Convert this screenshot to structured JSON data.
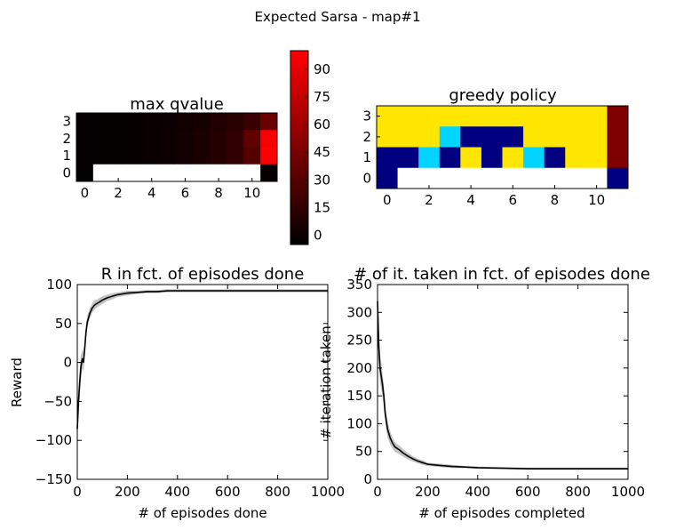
{
  "figure": {
    "suptitle": "Expected Sarsa - map#1"
  },
  "chart_data": [
    {
      "id": "qvalue",
      "type": "heatmap",
      "title": "max qvalue",
      "grid_rows": 4,
      "grid_cols": 12,
      "xticks": [
        0,
        2,
        4,
        6,
        8,
        10
      ],
      "yticks": [
        3,
        2,
        1,
        0
      ],
      "cmap": [
        "#000000",
        "#ff0000"
      ],
      "vmin": -5,
      "vmax": 100,
      "values": [
        [
          -4,
          -3,
          -3,
          -2,
          -1,
          0,
          2,
          4,
          8,
          12,
          18,
          38
        ],
        [
          -4,
          -3,
          -3,
          -2,
          -1,
          1,
          3,
          6,
          10,
          16,
          35,
          97
        ],
        [
          -4,
          -3,
          -3,
          -2,
          -1,
          1,
          3,
          6,
          10,
          16,
          30,
          99
        ],
        [
          -4,
          null,
          null,
          null,
          null,
          null,
          null,
          null,
          null,
          null,
          null,
          -3
        ]
      ],
      "colorbar": {
        "ticks": [
          0,
          15,
          30,
          45,
          60,
          75,
          90
        ]
      }
    },
    {
      "id": "policy",
      "type": "heatmap",
      "title": "greedy policy",
      "grid_rows": 4,
      "grid_cols": 12,
      "xticks": [
        0,
        2,
        4,
        6,
        8,
        10
      ],
      "yticks": [
        3,
        2,
        1,
        0
      ],
      "palette": {
        "0": "#000080",
        "1": "#00d4ff",
        "2": "#ffe600",
        "3": "#7f0000",
        "empty": "#ffffff"
      },
      "values": [
        [
          2,
          2,
          2,
          2,
          2,
          2,
          2,
          2,
          2,
          2,
          2,
          3
        ],
        [
          2,
          2,
          2,
          1,
          0,
          0,
          0,
          2,
          2,
          2,
          2,
          3
        ],
        [
          0,
          0,
          1,
          0,
          2,
          0,
          2,
          1,
          0,
          2,
          2,
          3
        ],
        [
          0,
          null,
          null,
          null,
          null,
          null,
          null,
          null,
          null,
          null,
          null,
          0
        ]
      ]
    },
    {
      "id": "reward",
      "type": "line",
      "title": "R in fct. of episodes done",
      "xlabel": "# of episodes done",
      "ylabel": "Reward",
      "xlim": [
        0,
        1000
      ],
      "ylim": [
        -150,
        100
      ],
      "xticks": [
        0,
        200,
        400,
        600,
        800,
        1000
      ],
      "yticks": [
        -150,
        -100,
        -50,
        0,
        50,
        100
      ],
      "ytick_labels": [
        "−150",
        "−100",
        "−50",
        "0",
        "50",
        "100"
      ],
      "series": [
        {
          "x": [
            0,
            5,
            10,
            15,
            20,
            25,
            30,
            35,
            40,
            50,
            60,
            70,
            80,
            90,
            100,
            120,
            140,
            160,
            180,
            200,
            240,
            280,
            320,
            360,
            400,
            500,
            600,
            700,
            800,
            900,
            1000
          ],
          "y": [
            -85,
            -50,
            -25,
            -5,
            5,
            0,
            20,
            40,
            52,
            63,
            70,
            74,
            76,
            78,
            80,
            83,
            85,
            87,
            88,
            89,
            90,
            91,
            91,
            92,
            92,
            92,
            92,
            92,
            92,
            92,
            92
          ],
          "band": [
            18,
            20,
            18,
            15,
            12,
            12,
            10,
            9,
            8,
            7,
            6,
            6,
            5,
            5,
            5,
            4,
            4,
            3,
            3,
            3,
            2,
            2,
            2,
            2,
            2,
            2,
            2,
            2,
            2,
            2,
            2
          ]
        }
      ]
    },
    {
      "id": "iterations",
      "type": "line",
      "title": "# of it. taken in fct. of episodes done",
      "xlabel": "# of episodes completed",
      "ylabel": "# iteration taken",
      "xlim": [
        0,
        1000
      ],
      "ylim": [
        0,
        350
      ],
      "xticks": [
        0,
        200,
        400,
        600,
        800,
        1000
      ],
      "yticks": [
        0,
        50,
        100,
        150,
        200,
        250,
        300,
        350
      ],
      "series": [
        {
          "x": [
            0,
            5,
            10,
            15,
            20,
            25,
            30,
            40,
            50,
            60,
            70,
            80,
            90,
            100,
            120,
            140,
            160,
            180,
            200,
            250,
            300,
            350,
            400,
            500,
            600,
            700,
            800,
            900,
            1000
          ],
          "y": [
            320,
            240,
            200,
            185,
            170,
            150,
            120,
            90,
            75,
            65,
            58,
            55,
            52,
            48,
            42,
            37,
            33,
            30,
            27,
            25,
            23,
            22,
            21,
            20,
            19,
            19,
            19,
            19,
            19
          ],
          "band": [
            30,
            30,
            25,
            25,
            22,
            20,
            18,
            15,
            12,
            10,
            9,
            8,
            8,
            7,
            6,
            5,
            4,
            4,
            3,
            3,
            3,
            2,
            2,
            2,
            2,
            2,
            2,
            2,
            2
          ]
        }
      ]
    }
  ]
}
